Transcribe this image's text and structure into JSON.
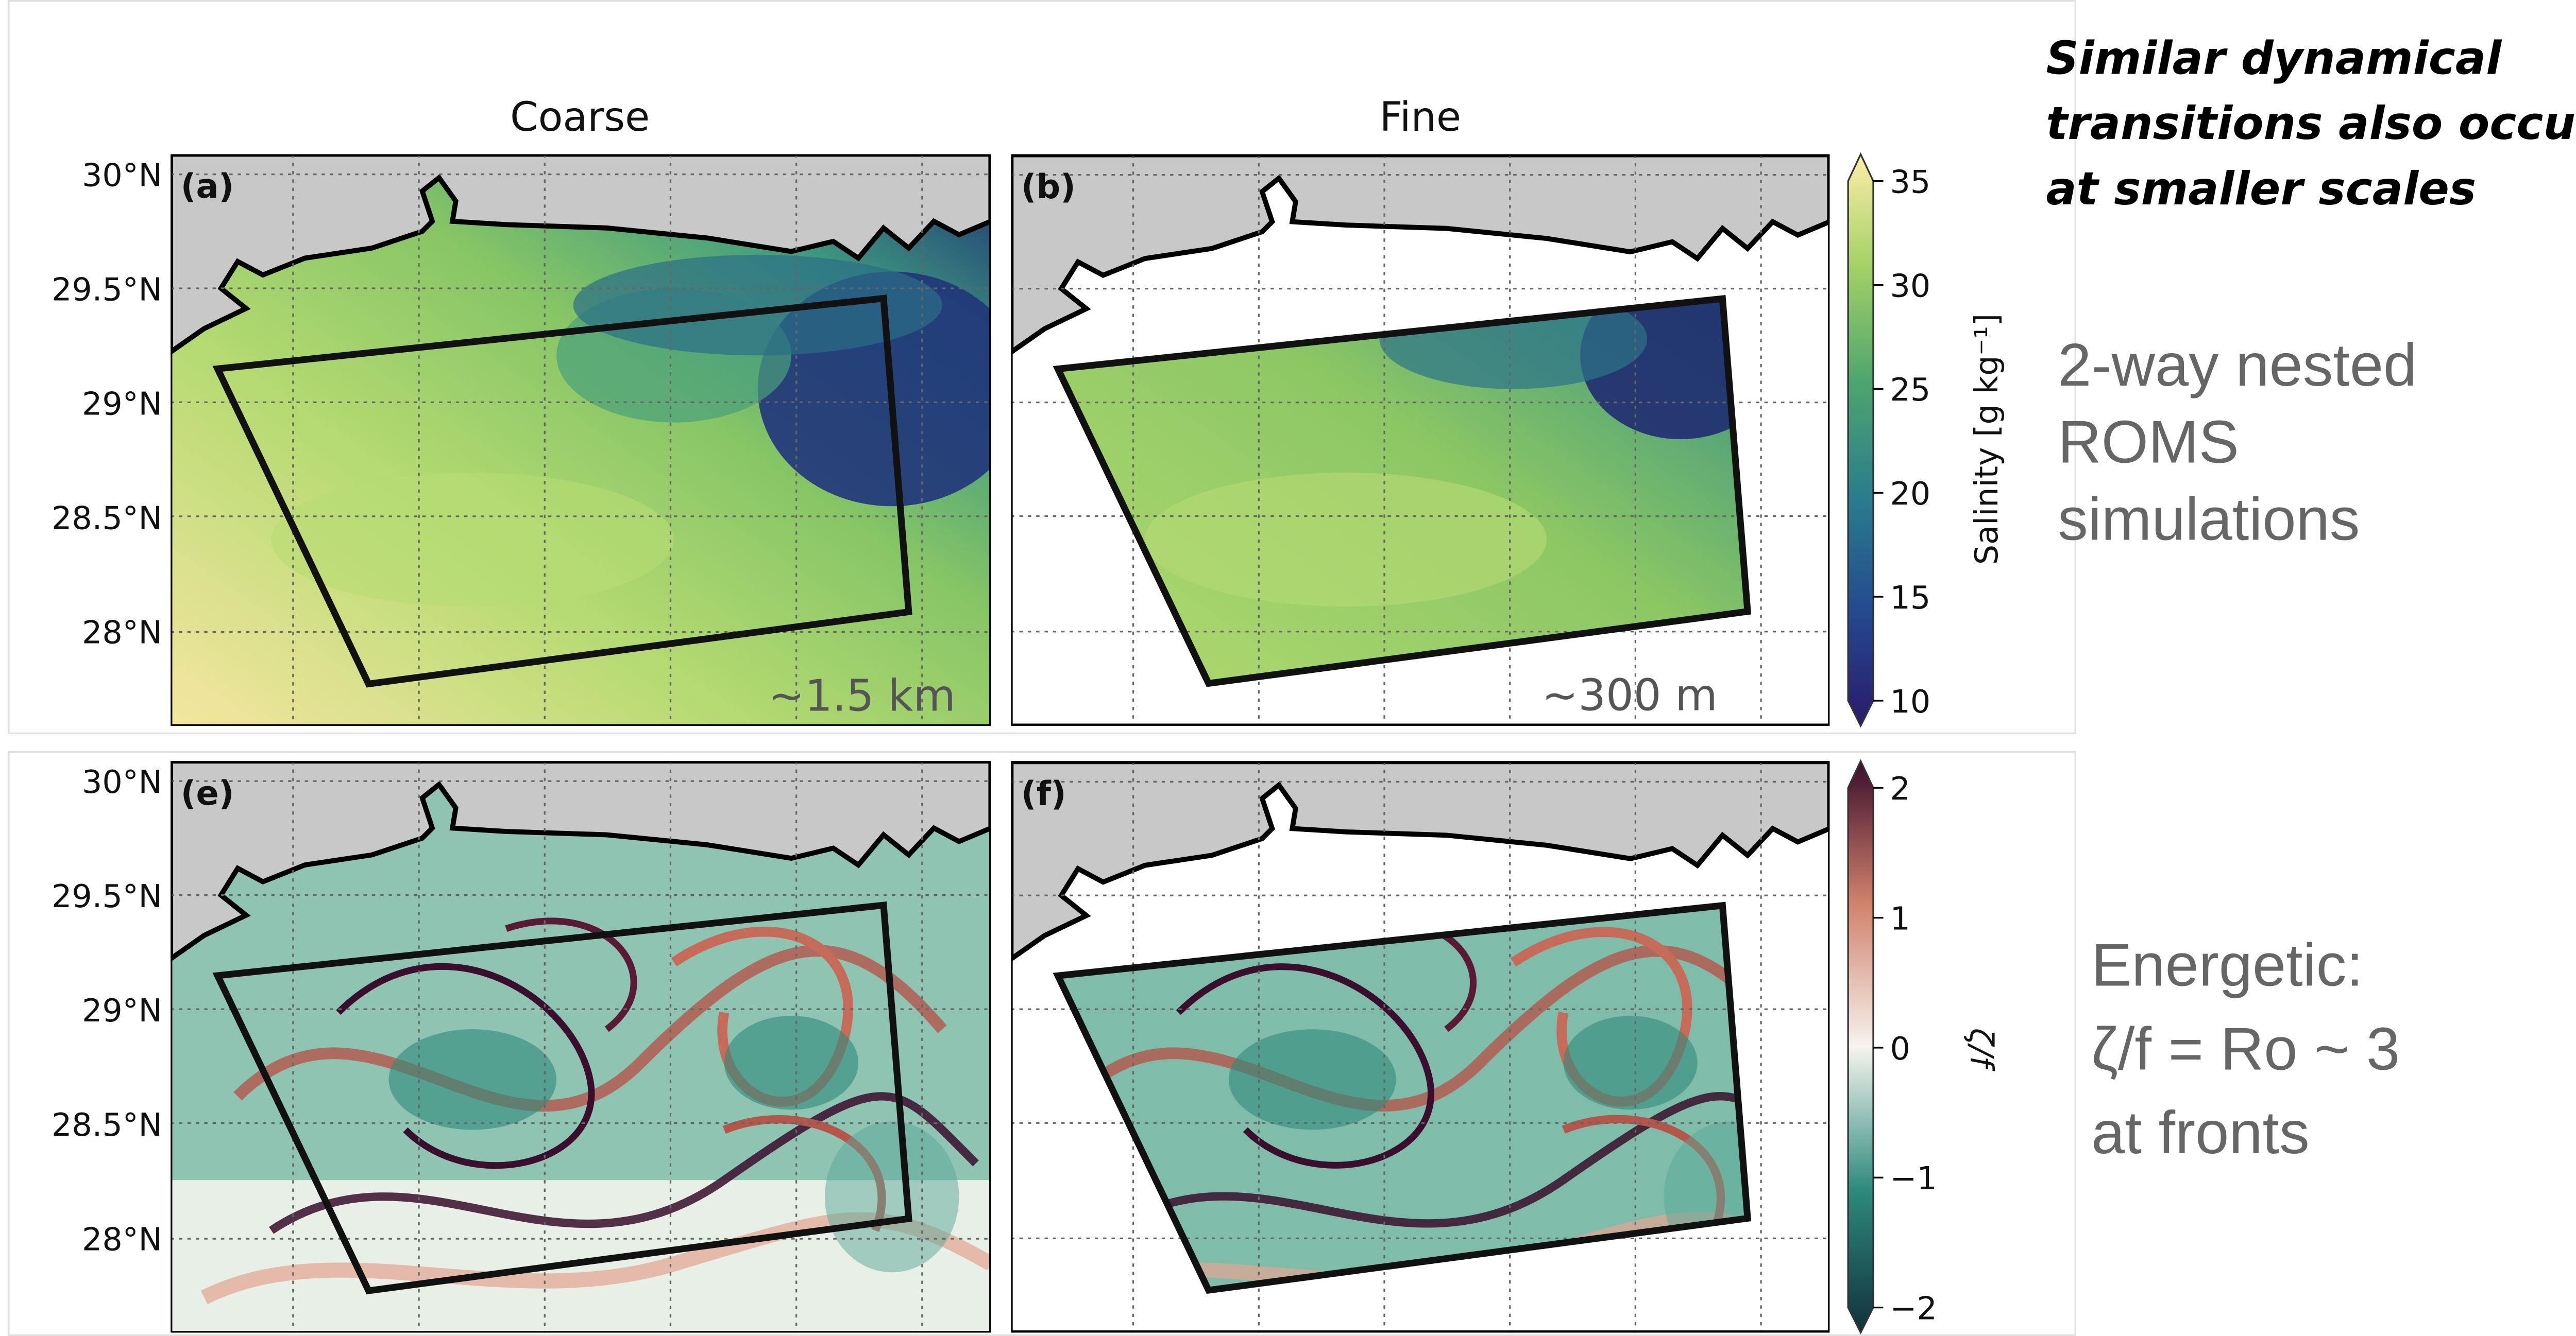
{
  "columns": [
    "Coarse",
    "Fine"
  ],
  "lat_labels": [
    "30°N",
    "29.5°N",
    "29°N",
    "28.5°N",
    "28°N"
  ],
  "panels": [
    {
      "label": "(a)",
      "resolution": "~1.5 km"
    },
    {
      "label": "(b)",
      "resolution": "~300 m"
    },
    {
      "label": "(e)"
    },
    {
      "label": "(f)"
    }
  ],
  "salinity_colorbar": {
    "label": "Salinity [g kg⁻¹]",
    "ticks": [
      10,
      15,
      20,
      25,
      30,
      35
    ]
  },
  "vorticity_colorbar": {
    "label": "ζ/f",
    "ticks": [
      {
        "value": -2,
        "label": "−2"
      },
      {
        "value": -1,
        "label": "−1"
      },
      0,
      1,
      2
    ]
  },
  "side_notes": {
    "headline": [
      "Similar dynamical",
      "transitions also occur",
      "at smaller scales"
    ],
    "nested": [
      "2-way nested",
      "ROMS",
      "simulations"
    ],
    "energetic": [
      "Energetic:",
      "ζ/f = Ro ~ 3",
      "at fronts"
    ]
  }
}
